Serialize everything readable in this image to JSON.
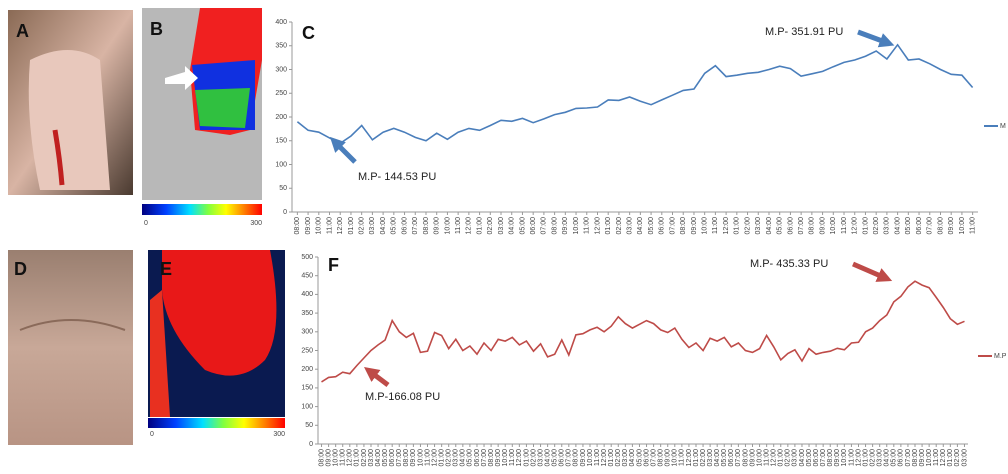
{
  "panel_labels": [
    "A",
    "B",
    "D",
    "E"
  ],
  "colorbars": [
    {
      "min": "0",
      "max": "300"
    },
    {
      "min": "0",
      "max": "300"
    }
  ],
  "chart_data": [
    {
      "type": "line",
      "title": "C",
      "color": "#4a7ebb",
      "grid": false,
      "legend": "right",
      "annotations": [
        "M.P- 351.91 PU",
        "M.P- 144.53 PU"
      ],
      "ylim": [
        0,
        400
      ],
      "yticks": [
        0,
        50,
        100,
        150,
        200,
        250,
        300,
        350,
        400
      ],
      "categories": [
        "08:00",
        "09:00",
        "10:00",
        "11:00",
        "12:00",
        "01:00",
        "02:00",
        "03:00",
        "04:00",
        "05:00",
        "06:00",
        "07:00",
        "08:00",
        "09:00",
        "10:00",
        "11:00",
        "12:00",
        "01:00",
        "02:00",
        "03:00",
        "04:00",
        "05:00",
        "06:00",
        "07:00",
        "08:00",
        "09:00",
        "10:00",
        "11:00",
        "12:00",
        "01:00",
        "02:00",
        "03:00",
        "04:00",
        "05:00",
        "06:00",
        "07:00",
        "08:00",
        "09:00",
        "10:00",
        "11:00",
        "12:00",
        "01:00",
        "02:00",
        "03:00",
        "04:00",
        "05:00",
        "06:00",
        "07:00",
        "08:00",
        "09:00",
        "10:00",
        "11:00",
        "12:00",
        "01:00",
        "02:00",
        "03:00",
        "04:00",
        "05:00",
        "06:00",
        "07:00",
        "08:00",
        "09:00",
        "10:00",
        "11:00"
      ],
      "series": [
        {
          "name": "M",
          "color": "#4a7ebb",
          "values": [
            190,
            172,
            168,
            156,
            144.53,
            160,
            182,
            152,
            168,
            176,
            168,
            157,
            150,
            166,
            153,
            168,
            176,
            172,
            182,
            193,
            191,
            197,
            188,
            196,
            205,
            210,
            218,
            219,
            221,
            236,
            235,
            242,
            233,
            226,
            236,
            246,
            256,
            259,
            292,
            308,
            285,
            288,
            292,
            294,
            300,
            307,
            302,
            286,
            291,
            296,
            306,
            315,
            320,
            328,
            339,
            322,
            351.91,
            320,
            322,
            312,
            300,
            290,
            288,
            262
          ]
        }
      ]
    },
    {
      "type": "line",
      "title": "F",
      "color": "#be4b48",
      "grid": false,
      "legend": "right",
      "annotations": [
        "M.P- 435.33 PU",
        "M.P-166.08 PU"
      ],
      "ylim": [
        0,
        500
      ],
      "yticks": [
        0,
        50,
        100,
        150,
        200,
        250,
        300,
        350,
        400,
        450,
        500
      ],
      "categories": [
        "08:00",
        "09:00",
        "10:00",
        "11:00",
        "12:00",
        "01:00",
        "02:00",
        "03:00",
        "04:00",
        "05:00",
        "06:00",
        "07:00",
        "08:00",
        "09:00",
        "10:00",
        "11:00",
        "12:00",
        "01:00",
        "02:00",
        "03:00",
        "04:00",
        "05:00",
        "06:00",
        "07:00",
        "08:00",
        "09:00",
        "10:00",
        "11:00",
        "12:00",
        "01:00",
        "02:00",
        "03:00",
        "04:00",
        "05:00",
        "06:00",
        "07:00",
        "08:00",
        "09:00",
        "10:00",
        "11:00",
        "12:00",
        "01:00",
        "02:00",
        "03:00",
        "04:00",
        "05:00",
        "06:00",
        "07:00",
        "08:00",
        "09:00",
        "10:00",
        "11:00",
        "12:00",
        "01:00",
        "02:00",
        "03:00",
        "04:00",
        "05:00",
        "06:00",
        "07:00",
        "08:00",
        "09:00",
        "10:00",
        "11:00",
        "12:00",
        "01:00",
        "02:00",
        "03:00",
        "04:00",
        "05:00",
        "06:00",
        "07:00",
        "08:00",
        "09:00",
        "10:00",
        "11:00",
        "12:00",
        "01:00",
        "02:00",
        "03:00",
        "04:00",
        "05:00",
        "06:00",
        "07:00",
        "08:00",
        "09:00",
        "10:00",
        "11:00",
        "12:00",
        "01:00",
        "02:00",
        "03:00"
      ],
      "series": [
        {
          "name": "M.P",
          "color": "#be4b48",
          "values": [
            166.08,
            178,
            180,
            192,
            188,
            210,
            230,
            250,
            265,
            278,
            330,
            300,
            285,
            296,
            245,
            248,
            298,
            290,
            255,
            280,
            250,
            262,
            240,
            270,
            250,
            280,
            275,
            285,
            265,
            275,
            248,
            268,
            233,
            240,
            278,
            238,
            292,
            295,
            305,
            312,
            300,
            315,
            340,
            322,
            310,
            320,
            330,
            322,
            305,
            298,
            310,
            280,
            258,
            270,
            250,
            283,
            275,
            285,
            260,
            270,
            250,
            245,
            255,
            290,
            260,
            225,
            242,
            252,
            222,
            255,
            240,
            245,
            248,
            256,
            252,
            270,
            272,
            300,
            310,
            330,
            345,
            380,
            395,
            420,
            435.33,
            425,
            418,
            392,
            365,
            335,
            320,
            328
          ]
        }
      ]
    }
  ]
}
